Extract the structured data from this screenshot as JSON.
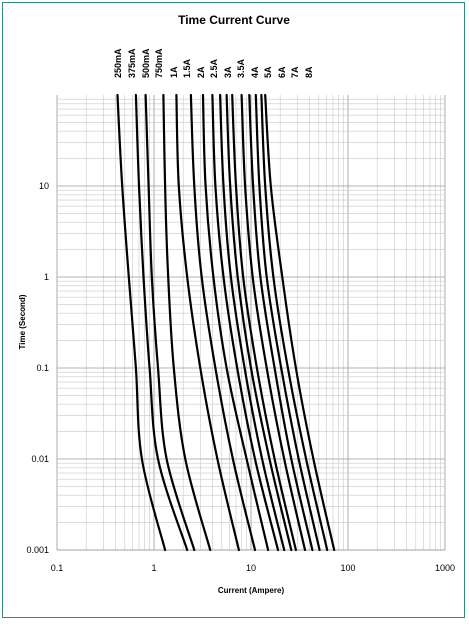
{
  "chart_data": {
    "type": "line",
    "title": "Time Current Curve",
    "xlabel": "Current (Ampere)",
    "ylabel": "Time (Second)",
    "xscale": "log",
    "yscale": "log",
    "xlim": [
      0.1,
      1000
    ],
    "ylim": [
      0.001,
      100
    ],
    "grid": true,
    "legend": "labels rotated above each curve",
    "x_ticks": [
      "0.1",
      "1",
      "10",
      "100",
      "1000"
    ],
    "y_ticks": [
      "0.001",
      "0.01",
      "0.1",
      "1",
      "10"
    ],
    "series": [
      {
        "name": "250mA",
        "points": [
          [
            0.42,
            100
          ],
          [
            0.47,
            10
          ],
          [
            0.55,
            1
          ],
          [
            0.65,
            0.1
          ],
          [
            0.75,
            0.01
          ],
          [
            1.3,
            0.001
          ]
        ]
      },
      {
        "name": "375mA",
        "points": [
          [
            0.65,
            100
          ],
          [
            0.7,
            10
          ],
          [
            0.78,
            1
          ],
          [
            0.9,
            0.1
          ],
          [
            1.1,
            0.01
          ],
          [
            2.2,
            0.001
          ]
        ]
      },
      {
        "name": "500mA",
        "points": [
          [
            0.82,
            100
          ],
          [
            0.88,
            10
          ],
          [
            0.95,
            1
          ],
          [
            1.1,
            0.1
          ],
          [
            1.35,
            0.01
          ],
          [
            2.6,
            0.001
          ]
        ]
      },
      {
        "name": "750mA",
        "points": [
          [
            1.25,
            100
          ],
          [
            1.3,
            10
          ],
          [
            1.4,
            1
          ],
          [
            1.6,
            0.1
          ],
          [
            2.1,
            0.01
          ],
          [
            3.8,
            0.001
          ]
        ]
      },
      {
        "name": "1A",
        "points": [
          [
            1.7,
            100
          ],
          [
            1.8,
            10
          ],
          [
            2.2,
            1
          ],
          [
            3.0,
            0.1
          ],
          [
            4.5,
            0.01
          ],
          [
            7.5,
            0.001
          ]
        ]
      },
      {
        "name": "1.5A",
        "points": [
          [
            2.4,
            100
          ],
          [
            2.6,
            10
          ],
          [
            3.1,
            1
          ],
          [
            4.3,
            0.1
          ],
          [
            6.5,
            0.01
          ],
          [
            11,
            0.001
          ]
        ]
      },
      {
        "name": "2A",
        "points": [
          [
            3.2,
            100
          ],
          [
            3.4,
            10
          ],
          [
            4.1,
            1
          ],
          [
            5.6,
            0.1
          ],
          [
            9.0,
            0.01
          ],
          [
            15,
            0.001
          ]
        ]
      },
      {
        "name": "2.5A",
        "points": [
          [
            4.0,
            100
          ],
          [
            4.3,
            10
          ],
          [
            5.2,
            1
          ],
          [
            7.2,
            0.1
          ],
          [
            11,
            0.01
          ],
          [
            19,
            0.001
          ]
        ]
      },
      {
        "name": "3A",
        "points": [
          [
            4.8,
            100
          ],
          [
            5.2,
            10
          ],
          [
            6.2,
            1
          ],
          [
            8.6,
            0.1
          ],
          [
            13,
            0.01
          ],
          [
            22,
            0.001
          ]
        ]
      },
      {
        "name": "3.5A",
        "points": [
          [
            5.6,
            100
          ],
          [
            6.1,
            10
          ],
          [
            7.3,
            1
          ],
          [
            10,
            0.1
          ],
          [
            15.5,
            0.01
          ],
          [
            26,
            0.001
          ]
        ]
      },
      {
        "name": "4A",
        "points": [
          [
            6.4,
            100
          ],
          [
            7.0,
            10
          ],
          [
            8.3,
            1
          ],
          [
            11.5,
            0.1
          ],
          [
            17.5,
            0.01
          ],
          [
            29,
            0.001
          ]
        ]
      },
      {
        "name": "5A",
        "points": [
          [
            8.0,
            100
          ],
          [
            8.7,
            10
          ],
          [
            10.4,
            1
          ],
          [
            14.5,
            0.1
          ],
          [
            22,
            0.01
          ],
          [
            36,
            0.001
          ]
        ]
      },
      {
        "name": "6A",
        "points": [
          [
            9.6,
            100
          ],
          [
            10.5,
            10
          ],
          [
            12.5,
            1
          ],
          [
            17.5,
            0.1
          ],
          [
            26,
            0.01
          ],
          [
            43,
            0.001
          ]
        ]
      },
      {
        "name": "7A",
        "points": [
          [
            11.2,
            100
          ],
          [
            12.2,
            10
          ],
          [
            14.5,
            1
          ],
          [
            20.5,
            0.1
          ],
          [
            31,
            0.01
          ],
          [
            51,
            0.001
          ]
        ]
      },
      {
        "name": "8A",
        "points": [
          [
            12.8,
            100
          ],
          [
            14,
            10
          ],
          [
            17,
            1
          ],
          [
            24,
            0.1
          ],
          [
            37,
            0.01
          ],
          [
            61,
            0.001
          ]
        ]
      },
      {
        "name": "8A",
        "points": [
          [
            14,
            100
          ],
          [
            16,
            10
          ],
          [
            21,
            1
          ],
          [
            29,
            0.1
          ],
          [
            44,
            0.01
          ],
          [
            72,
            0.001
          ]
        ]
      }
    ]
  }
}
